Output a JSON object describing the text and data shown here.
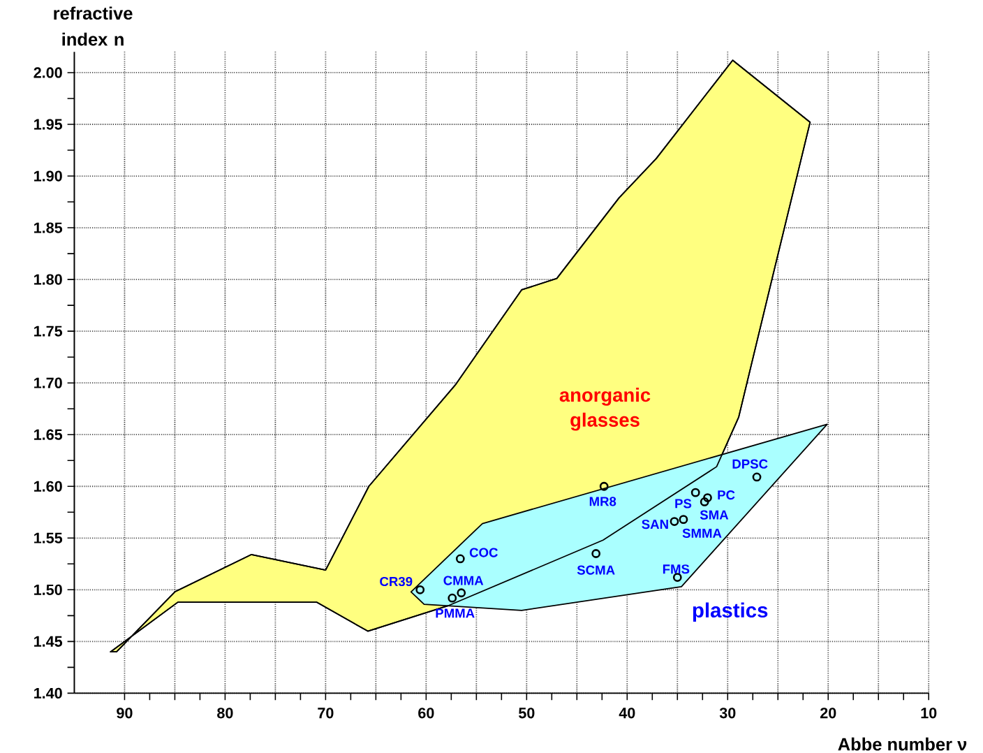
{
  "chart_data": {
    "type": "scatter",
    "xlabel": "Abbe number ν",
    "ylabel": "refractive index n",
    "xlim": [
      95,
      10
    ],
    "ylim": [
      1.4,
      2.02
    ],
    "xticks": [
      90,
      {
        "value": 85,
        "label": null
      },
      80,
      {
        "value": 75,
        "label": null
      },
      70,
      {
        "value": 65,
        "label": null
      },
      60,
      {
        "value": 55,
        "label": null
      },
      50,
      {
        "value": 45,
        "label": null
      },
      40,
      {
        "value": 35,
        "label": null
      },
      30,
      {
        "value": 25,
        "label": null
      },
      20,
      {
        "value": 15,
        "label": null
      },
      10
    ],
    "yticks": [
      {
        "value": 1.4,
        "label": "1.40"
      },
      {
        "value": 1.45,
        "label": "1.45"
      },
      {
        "value": 1.5,
        "label": "1.50"
      },
      {
        "value": 1.55,
        "label": "1.55"
      },
      {
        "value": 1.6,
        "label": "1.60"
      },
      {
        "value": 1.65,
        "label": "1.65"
      },
      {
        "value": 1.7,
        "label": "1.70"
      },
      {
        "value": 1.75,
        "label": "1.75"
      },
      {
        "value": 1.8,
        "label": "1.80"
      },
      {
        "value": 1.85,
        "label": "1.85"
      },
      {
        "value": 1.9,
        "label": "1.90"
      },
      {
        "value": 1.95,
        "label": "1.95"
      },
      {
        "value": 2.0,
        "label": "2.00"
      }
    ],
    "grid": true,
    "series": [
      {
        "type": "area",
        "name": "anorganic glasses",
        "color": "#ffff80",
        "x": [
          91.4,
          90.8,
          85.0,
          77.4,
          70.0,
          65.7,
          57.1,
          50.5,
          47.0,
          40.8,
          37.1,
          29.5,
          21.8,
          25.5,
          28.9,
          31.1,
          42.4,
          57.7,
          65.8,
          70.9,
          84.7
        ],
        "values": [
          1.44,
          1.44,
          1.498,
          1.534,
          1.519,
          1.6,
          1.698,
          1.79,
          1.801,
          1.879,
          1.917,
          2.012,
          1.952,
          1.804,
          1.667,
          1.619,
          1.548,
          1.485,
          1.46,
          1.488,
          1.488
        ]
      },
      {
        "type": "area",
        "name": "plastics",
        "color": "#aaffff",
        "x": [
          61.5,
          60.2,
          50.5,
          34.6,
          20.1,
          54.4
        ],
        "values": [
          1.498,
          1.486,
          1.48,
          1.503,
          1.66,
          1.564
        ]
      },
      {
        "marker": "circle",
        "color": "#000000",
        "x": [
          60.6,
          56.6,
          56.5,
          57.4,
          42.3,
          43.1,
          35.3,
          34.4,
          33.2,
          32.0,
          32.3,
          35.0,
          27.1
        ],
        "values": [
          1.5,
          1.53,
          1.497,
          1.492,
          1.6,
          1.535,
          1.566,
          1.568,
          1.594,
          1.589,
          1.585,
          1.512,
          1.609
        ]
      }
    ],
    "annotations": [
      {
        "text": "CR39",
        "x": 60.6,
        "y": 1.5
      },
      {
        "text": "COC",
        "x": 56.6,
        "y": 1.53
      },
      {
        "text": "CMMA",
        "x": 56.5,
        "y": 1.497
      },
      {
        "text": "PMMA",
        "x": 57.4,
        "y": 1.492
      },
      {
        "text": "MR8",
        "x": 42.3,
        "y": 1.6
      },
      {
        "text": "SCMA",
        "x": 43.1,
        "y": 1.535
      },
      {
        "text": "SAN",
        "x": 35.3,
        "y": 1.566
      },
      {
        "text": "SMMA",
        "x": 34.4,
        "y": 1.568
      },
      {
        "text": "PS",
        "x": 33.2,
        "y": 1.594
      },
      {
        "text": "PC",
        "x": 32.0,
        "y": 1.589
      },
      {
        "text": "SMA",
        "x": 32.3,
        "y": 1.585
      },
      {
        "text": "FMS",
        "x": 35.0,
        "y": 1.512
      },
      {
        "text": "DPSC",
        "x": 27.1,
        "y": 1.609
      }
    ]
  }
}
